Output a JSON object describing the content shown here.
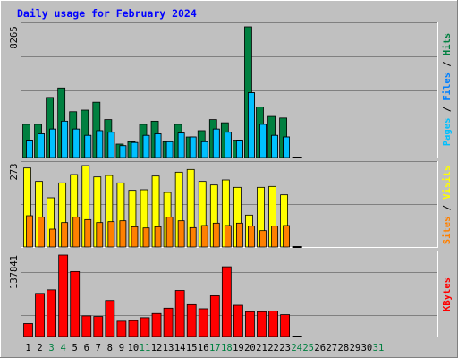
{
  "title": "Daily usage for February 2024",
  "panels": {
    "top": {
      "max_label": "8265",
      "max": 8265,
      "labels": [
        {
          "text": "Pages",
          "color": "#00c0ff"
        },
        {
          "text": " / ",
          "color": "#000000"
        },
        {
          "text": "Files",
          "color": "#0080ff"
        },
        {
          "text": " / ",
          "color": "#000000"
        },
        {
          "text": "Hits",
          "color": "#008040"
        }
      ]
    },
    "middle": {
      "max_label": "273",
      "max": 273,
      "labels": [
        {
          "text": "Sites",
          "color": "#ff8000"
        },
        {
          "text": " / ",
          "color": "#000000"
        },
        {
          "text": "Visits",
          "color": "#ffff00"
        }
      ]
    },
    "bottom": {
      "max_label": "137841",
      "max": 137841,
      "labels": [
        {
          "text": "KBytes",
          "color": "#ff0000"
        }
      ]
    }
  },
  "days": [
    "1",
    "2",
    "3",
    "4",
    "5",
    "6",
    "7",
    "8",
    "9",
    "10",
    "11",
    "12",
    "13",
    "14",
    "15",
    "16",
    "17",
    "18",
    "19",
    "20",
    "21",
    "22",
    "23",
    "24",
    "25",
    "26",
    "27",
    "28",
    "29",
    "30",
    "31"
  ],
  "day_colors": [
    "#000000",
    "#000000",
    "#008040",
    "#008040",
    "#000000",
    "#000000",
    "#000000",
    "#000000",
    "#000000",
    "#000000",
    "#008040",
    "#000000",
    "#000000",
    "#000000",
    "#000000",
    "#000000",
    "#008040",
    "#008040",
    "#000000",
    "#000000",
    "#000000",
    "#000000",
    "#000000",
    "#008040",
    "#008040",
    "#000000",
    "#000000",
    "#000000",
    "#000000",
    "#000000",
    "#008040"
  ],
  "chart_data": {
    "type": "bar",
    "title": "Daily usage for February 2024",
    "categories": [
      "1",
      "2",
      "3",
      "4",
      "5",
      "6",
      "7",
      "8",
      "9",
      "10",
      "11",
      "12",
      "13",
      "14",
      "15",
      "16",
      "17",
      "18",
      "19",
      "20",
      "21",
      "22",
      "23",
      "24",
      "25",
      "26",
      "27",
      "28",
      "29",
      "30",
      "31"
    ],
    "grid": true,
    "panels": [
      {
        "name": "top",
        "ylim": [
          0,
          8265
        ],
        "series": [
          {
            "name": "Hits",
            "color": "#008040",
            "values": [
              2100,
              2100,
              3800,
              4400,
              2900,
              3000,
              3500,
              2400,
              850,
              1000,
              2100,
              2300,
              1000,
              2100,
              1300,
              1700,
              2400,
              2200,
              1100,
              8265,
              3200,
              2600,
              2500,
              0,
              0,
              0,
              0,
              0,
              0,
              0,
              0
            ]
          },
          {
            "name": "Files",
            "color": "#0080ff",
            "values": [
              1100,
              1500,
              1800,
              2300,
              1800,
              1400,
              1700,
              1600,
              750,
              950,
              1400,
              1500,
              1000,
              1550,
              1300,
              1000,
              1800,
              1600,
              1100,
              4100,
              2100,
              1400,
              1300,
              0,
              0,
              0,
              0,
              0,
              0,
              0,
              0
            ]
          },
          {
            "name": "Pages",
            "color": "#00c0ff",
            "values": [
              1100,
              1500,
              1800,
              2300,
              1800,
              1400,
              1700,
              1600,
              750,
              950,
              1400,
              1500,
              1000,
              1550,
              1300,
              1000,
              1800,
              1600,
              1100,
              4100,
              2100,
              1400,
              1300,
              0,
              0,
              0,
              0,
              0,
              0,
              0,
              0
            ]
          }
        ]
      },
      {
        "name": "middle",
        "ylim": [
          0,
          273
        ],
        "series": [
          {
            "name": "Visits",
            "color": "#ffff00",
            "values": [
              265,
              220,
              165,
              215,
              243,
              273,
              235,
              240,
              215,
              190,
              192,
              238,
              183,
              251,
              260,
              220,
              208,
              225,
              200,
              107,
              200,
              203,
              175,
              0,
              0,
              0,
              0,
              0,
              0,
              0,
              0
            ]
          },
          {
            "name": "Sites",
            "color": "#ff8000",
            "values": [
              105,
              100,
              60,
              82,
              100,
              92,
              82,
              85,
              88,
              68,
              64,
              68,
              100,
              88,
              65,
              72,
              80,
              72,
              80,
              70,
              55,
              70,
              72,
              0,
              0,
              0,
              0,
              0,
              0,
              0,
              0
            ]
          }
        ]
      },
      {
        "name": "bottom",
        "ylim": [
          0,
          137841
        ],
        "series": [
          {
            "name": "KBytes",
            "color": "#ff0000",
            "values": [
              22000,
              73000,
              79000,
              137841,
              110000,
              35000,
              34000,
              61000,
              26000,
              27000,
              32000,
              39000,
              48000,
              78000,
              54000,
              47000,
              69000,
              118000,
              53000,
              42000,
              42000,
              43000,
              37000,
              0,
              0,
              0,
              0,
              0,
              0,
              0,
              0
            ]
          }
        ]
      }
    ]
  }
}
